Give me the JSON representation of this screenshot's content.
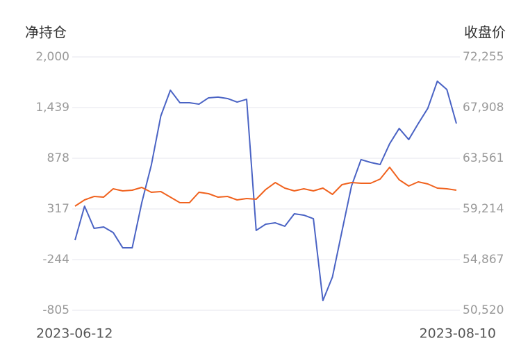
{
  "chart_data": {
    "type": "line",
    "y_label": "净持仓",
    "y2_label": "收盘价",
    "categories": [
      "2023-06-12",
      null,
      null,
      null,
      null,
      null,
      null,
      null,
      null,
      null,
      null,
      null,
      null,
      null,
      null,
      null,
      null,
      null,
      null,
      null,
      null,
      null,
      null,
      null,
      null,
      null,
      null,
      null,
      null,
      null,
      null,
      null,
      null,
      null,
      null,
      null,
      null,
      null,
      null,
      null,
      "2023-08-10"
    ],
    "series": [
      {
        "color": "#4a63c4",
        "axis": "y",
        "values": [
          -29,
          348,
          102,
          117,
          56,
          -113,
          -113,
          386,
          801,
          1347,
          1631,
          1493,
          1493,
          1477,
          1547,
          1555,
          1539,
          1500,
          1531,
          79,
          148,
          163,
          125,
          263,
          248,
          209,
          -697,
          -436,
          71,
          571,
          863,
          832,
          809,
          1039,
          1208,
          1085,
          1262,
          1431,
          1731,
          1639,
          1262
        ]
      },
      {
        "color": "#f0621e",
        "axis": "y2",
        "values": [
          59452,
          59988,
          60285,
          60225,
          60940,
          60761,
          60821,
          61060,
          60643,
          60702,
          60225,
          59749,
          59749,
          60643,
          60524,
          60225,
          60285,
          59988,
          60106,
          60047,
          60881,
          61476,
          61000,
          60761,
          60940,
          60761,
          61000,
          60464,
          61298,
          61476,
          61417,
          61417,
          61774,
          62787,
          61714,
          61179,
          61536,
          61357,
          61000,
          60940,
          60821
        ]
      }
    ],
    "ylim": [
      -805,
      2000
    ],
    "yticks": [
      -805,
      -244,
      317,
      878,
      {
        "value": 1439,
        "label": "1,439"
      },
      {
        "value": 2000,
        "label": "2,000"
      }
    ],
    "y2lim": [
      50520,
      72255
    ],
    "y2ticks": [
      {
        "value": 50520,
        "label": "50,520"
      },
      {
        "value": 54867,
        "label": "54,867"
      },
      {
        "value": 59214,
        "label": "59,214"
      },
      {
        "value": 63561,
        "label": "63,561"
      },
      {
        "value": 67908,
        "label": "67,908"
      },
      {
        "value": 72255,
        "label": "72,255"
      }
    ],
    "grid": true
  }
}
